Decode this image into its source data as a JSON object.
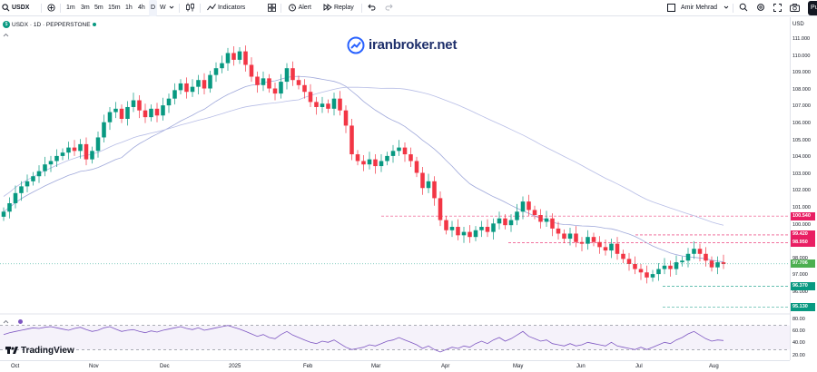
{
  "toolbar": {
    "symbol": "USDX",
    "timeframes": [
      "1m",
      "3m",
      "5m",
      "15m",
      "1h",
      "4h",
      "D",
      "W"
    ],
    "active_timeframe": "D",
    "indicators_label": "Indicators",
    "alert_label": "Alert",
    "replay_label": "Replay",
    "user_name": "Amir Mehrad",
    "publish_label": "Pu"
  },
  "legend": {
    "title": "USDX · 1D · PEPPERSTONE",
    "badge": "$"
  },
  "watermark": "iranbroker.net",
  "brand": "TradingView",
  "price_scale": {
    "currency": "USD",
    "ticks": [
      "111.000",
      "110.000",
      "109.000",
      "108.000",
      "107.000",
      "106.000",
      "105.000",
      "104.000",
      "103.000",
      "102.000",
      "101.000",
      "100.000",
      "98.000",
      "97.000",
      "96.000"
    ],
    "labels": [
      {
        "text": "100.540",
        "color": "#e91e63"
      },
      {
        "text": "99.420",
        "color": "#e91e63"
      },
      {
        "text": "98.950",
        "color": "#e91e63"
      },
      {
        "text": "97.706",
        "color": "#4caf50"
      },
      {
        "text": "96.370",
        "color": "#089981"
      },
      {
        "text": "95.130",
        "color": "#089981"
      }
    ],
    "rsi_ticks": [
      "80.00",
      "60.00",
      "40.00",
      "20.00"
    ]
  },
  "time_axis": [
    "Oct",
    "Nov",
    "Dec",
    "2025",
    "Feb",
    "Mar",
    "Apr",
    "May",
    "Jun",
    "Jul",
    "Aug"
  ],
  "colors": {
    "up": "#089981",
    "down": "#f23645",
    "ma_fast": "#9fa8da",
    "ma_slow": "#b7bde6",
    "rsi_line": "#7e57c2",
    "level_line": "#e91e63",
    "support_line": "#089981"
  },
  "chart_data": {
    "type": "candlestick",
    "title": "USDX · 1D · PEPPERSTONE",
    "ylim": [
      95.6,
      111.3
    ],
    "x_labels": [
      "Oct",
      "Nov",
      "Dec",
      "2025",
      "Feb",
      "Mar",
      "Apr",
      "May",
      "Jun",
      "Jul",
      "Aug"
    ],
    "closes": [
      100.8,
      101.3,
      101.9,
      102.3,
      102.6,
      102.9,
      103.2,
      103.6,
      103.8,
      104.1,
      104.3,
      104.6,
      104.4,
      104.8,
      103.9,
      104.4,
      105.2,
      106.1,
      106.7,
      106.9,
      106.3,
      107.0,
      107.4,
      106.8,
      106.4,
      106.9,
      106.5,
      107.1,
      107.5,
      108.0,
      108.4,
      107.9,
      108.2,
      108.6,
      108.1,
      108.9,
      109.3,
      109.6,
      110.2,
      109.8,
      110.3,
      109.5,
      108.8,
      108.3,
      108.7,
      108.1,
      107.8,
      108.5,
      109.3,
      108.6,
      108.3,
      107.9,
      107.3,
      107.0,
      107.2,
      106.9,
      107.5,
      106.8,
      105.9,
      104.2,
      103.8,
      103.6,
      103.9,
      103.5,
      103.8,
      104.1,
      104.4,
      104.6,
      104.2,
      103.8,
      103.1,
      102.2,
      102.6,
      101.6,
      100.3,
      99.7,
      99.9,
      99.4,
      99.6,
      99.3,
      99.7,
      99.9,
      99.6,
      100.1,
      100.4,
      100.0,
      100.3,
      100.8,
      101.4,
      100.9,
      100.6,
      100.2,
      100.4,
      99.8,
      99.5,
      99.2,
      99.5,
      99.0,
      98.9,
      99.3,
      99.0,
      98.7,
      98.5,
      98.9,
      98.3,
      98.0,
      97.7,
      97.4,
      97.2,
      96.9,
      97.1,
      97.4,
      97.6,
      97.4,
      97.8,
      97.9,
      98.3,
      98.6,
      98.3,
      97.9,
      97.5,
      97.8,
      97.7
    ],
    "ma_fast_label": "",
    "levels": [
      100.54,
      99.42,
      98.95,
      97.706,
      96.37,
      95.13
    ],
    "last_price": 97.706,
    "rsi": {
      "ylim": [
        20,
        80
      ],
      "bands": [
        70,
        30
      ],
      "values": [
        55,
        58,
        60,
        62,
        64,
        66,
        65,
        67,
        68,
        66,
        64,
        62,
        65,
        67,
        63,
        60,
        62,
        66,
        68,
        64,
        60,
        62,
        63,
        60,
        58,
        61,
        59,
        62,
        64,
        66,
        68,
        65,
        63,
        66,
        62,
        64,
        66,
        68,
        70,
        67,
        64,
        60,
        56,
        52,
        55,
        50,
        48,
        55,
        60,
        54,
        50,
        46,
        42,
        40,
        44,
        42,
        46,
        40,
        34,
        30,
        32,
        34,
        38,
        36,
        40,
        44,
        46,
        50,
        46,
        42,
        38,
        32,
        36,
        30,
        26,
        30,
        34,
        32,
        36,
        34,
        40,
        44,
        40,
        46,
        50,
        44,
        48,
        54,
        60,
        52,
        48,
        44,
        46,
        40,
        38,
        36,
        40,
        36,
        38,
        42,
        40,
        38,
        36,
        42,
        36,
        34,
        32,
        30,
        34,
        30,
        34,
        38,
        42,
        40,
        46,
        50,
        56,
        60,
        54,
        48,
        44,
        46,
        45
      ]
    }
  }
}
